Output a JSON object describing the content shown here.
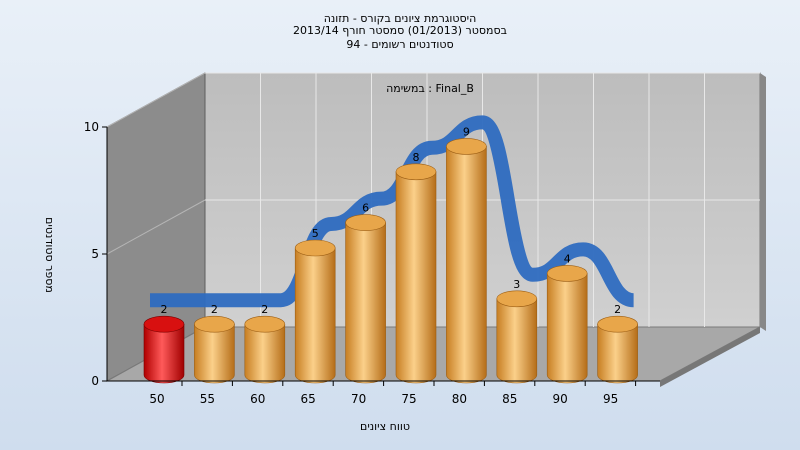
{
  "chart_data": {
    "type": "bar",
    "title": [
      "היסטוגרמת ציונים בקורס - תזונה",
      "בסמסטר  (01/2013)  סמסטר חורף 2013/14",
      "סטודנטים רשומים - 94"
    ],
    "subtitle": "במשימה : Final_B",
    "xlabel": "טווח ציונים",
    "ylabel": "מספר סטודנטים",
    "x_ticks": [
      "50",
      "55",
      "60",
      "65",
      "70",
      "75",
      "80",
      "85",
      "90",
      "95"
    ],
    "y_ticks": [
      "0",
      "5",
      "10"
    ],
    "ylim": [
      0,
      10
    ],
    "categories": [
      "50",
      "55",
      "60",
      "65",
      "70",
      "75",
      "80",
      "85",
      "90",
      "95"
    ],
    "values": [
      2,
      2,
      2,
      5,
      6,
      8,
      9,
      3,
      4,
      2
    ],
    "highlight_index": 0,
    "trend_line": true,
    "grid": true,
    "colors": {
      "bar": "#e8a64a",
      "bar_highlight": "#e01818",
      "trend": "#2e6cc0",
      "wall_left": "#8c8c8c",
      "wall_back": "#c4c4c4",
      "floor": "#a8a8a8"
    }
  }
}
